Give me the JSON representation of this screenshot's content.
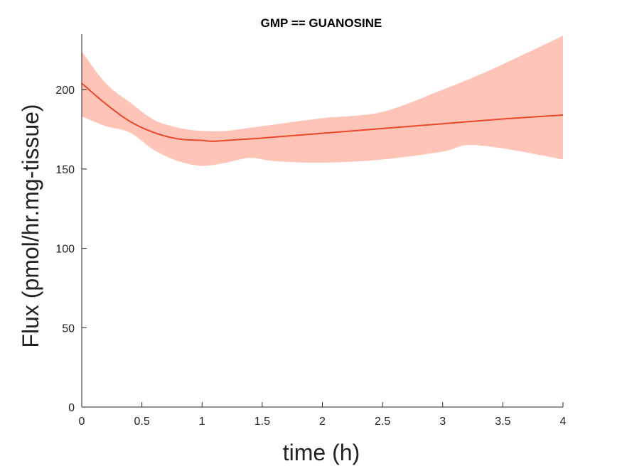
{
  "chart_data": {
    "type": "line",
    "title": "GMP == GUANOSINE",
    "xlabel": "time (h)",
    "ylabel": "Flux (pmol/hr.mg-tissue)",
    "xlim": [
      0,
      4
    ],
    "ylim": [
      0,
      235
    ],
    "xticks": [
      0,
      0.5,
      1,
      1.5,
      2,
      2.5,
      3,
      3.5,
      4
    ],
    "xtick_labels": [
      "0",
      "0.5",
      "1",
      "1.5",
      "2",
      "2.5",
      "3",
      "3.5",
      "4"
    ],
    "yticks": [
      0,
      50,
      100,
      150,
      200
    ],
    "ytick_labels": [
      "0",
      "50",
      "100",
      "150",
      "200"
    ],
    "grid": false,
    "colors": {
      "line": "#e8492a",
      "band": "#ffc4b8",
      "axis": "#262626"
    },
    "series": [
      {
        "x": [
          0,
          0.2,
          0.4,
          0.6,
          0.8,
          1.0,
          1.1,
          1.3,
          1.5,
          2.0,
          2.5,
          3.0,
          3.5,
          4.0
        ],
        "y": [
          204,
          191,
          180,
          173,
          169,
          168,
          167.5,
          168.5,
          169.5,
          172.5,
          175.5,
          178.5,
          181.5,
          184
        ]
      }
    ],
    "band": {
      "x": [
        0,
        0.2,
        0.4,
        0.6,
        0.8,
        1.0,
        1.2,
        1.4,
        1.6,
        2.0,
        2.5,
        3.0,
        3.2,
        3.5,
        4.0
      ],
      "upper": [
        224,
        204,
        192,
        181,
        176,
        174,
        174,
        176,
        178,
        182,
        186,
        200,
        206,
        216,
        234
      ],
      "lower": [
        183,
        177,
        173,
        162,
        155,
        152,
        154,
        157,
        155,
        154,
        156,
        161,
        165,
        163,
        156
      ]
    }
  }
}
